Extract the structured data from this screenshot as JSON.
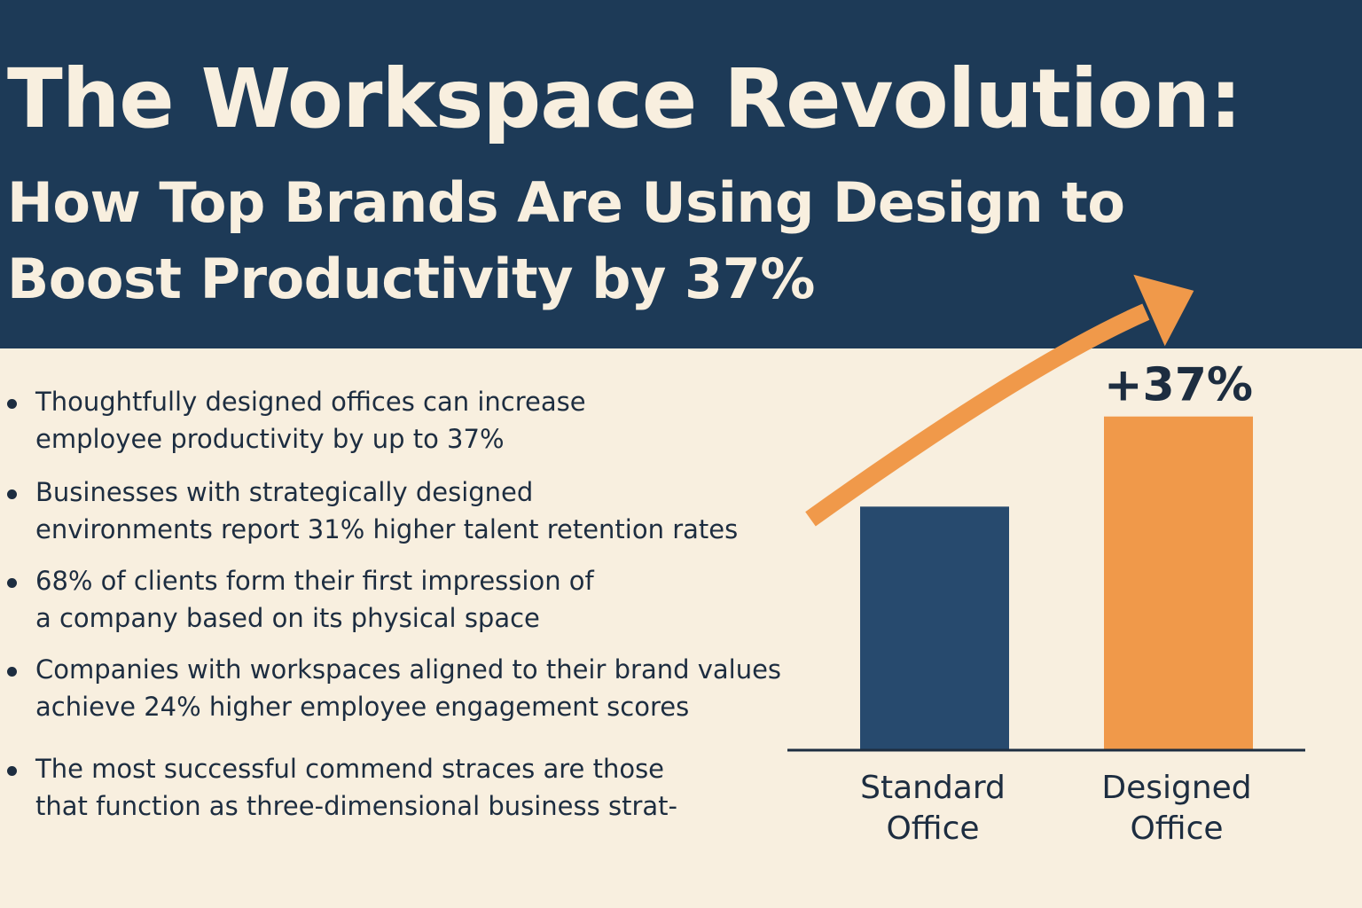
{
  "header": {
    "title": "The Workspace Revolution:",
    "subtitle": "How Top Brands Are Using Design to Boost Productivity by 37%"
  },
  "bullets": [
    {
      "lines": [
        "Thoughtfully designed offices can increase",
        "employee productivity by up to 37%"
      ]
    },
    {
      "lines": [
        "Businesses with strategically designed",
        "environments report 31% higher talent retention rates"
      ]
    },
    {
      "lines": [
        "68% of clients form their first impression of",
        "a company based on its physical space"
      ]
    },
    {
      "lines": [
        "Companies with workspaces aligned to their brand values",
        "achieve 24% higher employee engagement scores"
      ]
    },
    {
      "lines": [
        "The most successful commend straces are those",
        "that function as three-dimensional business strat-"
      ]
    }
  ],
  "chart_data": {
    "type": "bar",
    "categories": [
      "Standard\nOffice",
      "Designed\nOffice"
    ],
    "values": [
      100,
      137
    ],
    "value_labels": [
      "",
      "+37%"
    ],
    "ylim": [
      0,
      150
    ],
    "grid": false,
    "legend": "none",
    "title": "",
    "xlabel": "",
    "ylabel": "",
    "colors": [
      "#274a6e",
      "#f0994a"
    ],
    "arrow_color": "#f0994a",
    "axis_color": "#1d2d40"
  },
  "colors": {
    "header_bg": "#1d3a57",
    "page_bg": "#f8efdf",
    "text_dark": "#1d2d40",
    "text_light": "#f8efdf"
  }
}
